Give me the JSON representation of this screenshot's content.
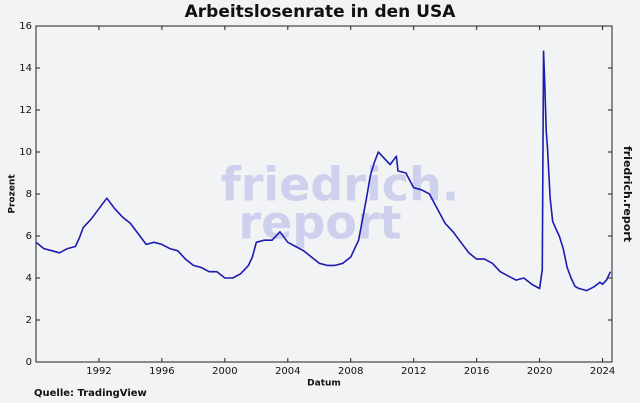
{
  "chart_data": {
    "type": "line",
    "title": "Arbeitslosenrate in den USA",
    "xlabel": "Datum",
    "ylabel": "Prozent",
    "source": "Quelle: TradingView",
    "watermark": [
      "friedrich.",
      "report"
    ],
    "side_label": "friedrich.report",
    "color": "#1c1cb0",
    "x": [
      1988.0,
      1988.5,
      1989.0,
      1989.5,
      1990.0,
      1990.5,
      1990.75,
      1991.0,
      1991.5,
      1992.0,
      1992.5,
      1993.0,
      1993.5,
      1994.0,
      1994.5,
      1995.0,
      1995.5,
      1996.0,
      1996.5,
      1997.0,
      1997.5,
      1998.0,
      1998.5,
      1999.0,
      1999.5,
      2000.0,
      2000.5,
      2001.0,
      2001.5,
      2001.75,
      2002.0,
      2002.5,
      2003.0,
      2003.5,
      2004.0,
      2004.5,
      2005.0,
      2005.5,
      2006.0,
      2006.5,
      2007.0,
      2007.5,
      2008.0,
      2008.5,
      2008.75,
      2009.0,
      2009.25,
      2009.5,
      2009.75,
      2010.0,
      2010.5,
      2010.9,
      2011.0,
      2011.5,
      2012.0,
      2012.5,
      2013.0,
      2013.5,
      2014.0,
      2014.5,
      2015.0,
      2015.5,
      2016.0,
      2016.5,
      2017.0,
      2017.5,
      2018.0,
      2018.5,
      2019.0,
      2019.5,
      2020.0,
      2020.17,
      2020.25,
      2020.33,
      2020.42,
      2020.5,
      2020.67,
      2020.83,
      2021.0,
      2021.25,
      2021.5,
      2021.75,
      2022.0,
      2022.25,
      2022.5,
      2023.0,
      2023.5,
      2023.83,
      2024.0,
      2024.25,
      2024.5
    ],
    "values": [
      5.7,
      5.4,
      5.3,
      5.2,
      5.4,
      5.5,
      5.9,
      6.4,
      6.8,
      7.3,
      7.8,
      7.3,
      6.9,
      6.6,
      6.1,
      5.6,
      5.7,
      5.6,
      5.4,
      5.3,
      4.9,
      4.6,
      4.5,
      4.3,
      4.3,
      4.0,
      4.0,
      4.2,
      4.6,
      5.0,
      5.7,
      5.8,
      5.8,
      6.2,
      5.7,
      5.5,
      5.3,
      5.0,
      4.7,
      4.6,
      4.6,
      4.7,
      5.0,
      5.8,
      6.8,
      7.8,
      8.9,
      9.5,
      10.0,
      9.8,
      9.4,
      9.8,
      9.1,
      9.0,
      8.3,
      8.2,
      8.0,
      7.3,
      6.6,
      6.2,
      5.7,
      5.2,
      4.9,
      4.9,
      4.7,
      4.3,
      4.1,
      3.9,
      4.0,
      3.7,
      3.5,
      4.4,
      14.8,
      13.2,
      11.0,
      10.2,
      7.8,
      6.7,
      6.4,
      6.0,
      5.4,
      4.5,
      4.0,
      3.6,
      3.5,
      3.4,
      3.6,
      3.8,
      3.7,
      3.9,
      4.3
    ],
    "xlim": [
      1988,
      2024.6
    ],
    "xticks": [
      1992,
      1996,
      2000,
      2004,
      2008,
      2012,
      2016,
      2020,
      2024
    ],
    "ylim": [
      0,
      16
    ],
    "yticks": [
      0,
      2,
      4,
      6,
      8,
      10,
      12,
      14,
      16
    ]
  }
}
